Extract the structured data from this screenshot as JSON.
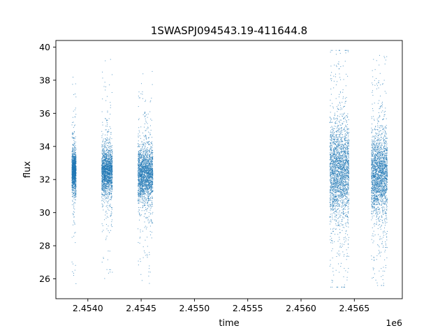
{
  "chart_data": {
    "type": "scatter",
    "title": "1SWASPJ094543.19-411644.8",
    "xlabel": "time",
    "ylabel": "flux",
    "x_offset_label": "1e6",
    "xlim": [
      2453700,
      2456950
    ],
    "ylim": [
      24.8,
      40.4
    ],
    "x_ticks": [
      2.454,
      2.4545,
      2.455,
      2.4555,
      2.456,
      2.4565
    ],
    "x_tick_labels": [
      "2.4540",
      "2.4545",
      "2.4550",
      "2.4555",
      "2.4560",
      "2.4565"
    ],
    "y_ticks": [
      26,
      28,
      30,
      32,
      34,
      36,
      38,
      40
    ],
    "y_tick_labels": [
      "26",
      "28",
      "30",
      "32",
      "34",
      "36",
      "38",
      "40"
    ],
    "grid": false,
    "marker_color": "#1f77b4",
    "clusters": [
      {
        "x_range": [
          2453850,
          2453890
        ],
        "y_center": 32.5,
        "core_spread": 0.6,
        "y_min": 25.6,
        "y_max": 38.6
      },
      {
        "x_range": [
          2454130,
          2454230
        ],
        "y_center": 32.5,
        "core_spread": 0.7,
        "y_min": 25.7,
        "y_max": 39.4
      },
      {
        "x_range": [
          2454470,
          2454610
        ],
        "y_center": 32.3,
        "core_spread": 0.8,
        "y_min": 25.6,
        "y_max": 38.6
      },
      {
        "x_range": [
          2456270,
          2456450
        ],
        "y_center": 32.5,
        "core_spread": 1.4,
        "y_min": 25.5,
        "y_max": 39.8
      },
      {
        "x_range": [
          2456660,
          2456810
        ],
        "y_center": 32.3,
        "core_spread": 1.2,
        "y_min": 25.6,
        "y_max": 39.5
      }
    ]
  }
}
